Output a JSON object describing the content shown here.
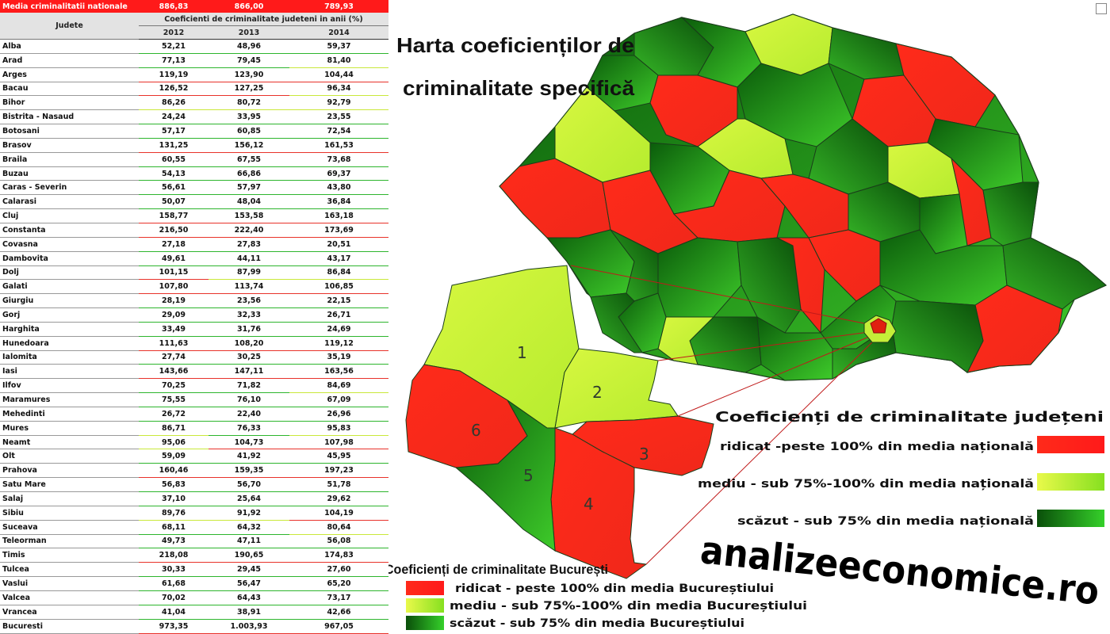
{
  "national": {
    "label": "Media criminalitatii nationale",
    "values": [
      "886,83",
      "866,00",
      "789,93"
    ]
  },
  "table": {
    "col_judete": "Judete",
    "col_header": "Coeficienti de criminalitate judeteni in anii (%)",
    "years": [
      "2012",
      "2013",
      "2014"
    ],
    "rows": [
      {
        "name": "Alba",
        "v": [
          "52,21",
          "48,96",
          "59,37"
        ],
        "c": [
          "g",
          "g",
          "g"
        ]
      },
      {
        "name": "Arad",
        "v": [
          "77,13",
          "79,45",
          "81,40"
        ],
        "c": [
          "g",
          "g",
          "y"
        ]
      },
      {
        "name": "Arges",
        "v": [
          "119,19",
          "123,90",
          "104,44"
        ],
        "c": [
          "r",
          "r",
          "r"
        ]
      },
      {
        "name": "Bacau",
        "v": [
          "126,52",
          "127,25",
          "96,34"
        ],
        "c": [
          "r",
          "r",
          "y"
        ]
      },
      {
        "name": "Bihor",
        "v": [
          "86,26",
          "80,72",
          "92,79"
        ],
        "c": [
          "y",
          "y",
          "y"
        ]
      },
      {
        "name": "Bistrita - Nasaud",
        "v": [
          "24,24",
          "33,95",
          "23,55"
        ],
        "c": [
          "g",
          "g",
          "g"
        ]
      },
      {
        "name": "Botosani",
        "v": [
          "57,17",
          "60,85",
          "72,54"
        ],
        "c": [
          "g",
          "g",
          "g"
        ]
      },
      {
        "name": "Brasov",
        "v": [
          "131,25",
          "156,12",
          "161,53"
        ],
        "c": [
          "r",
          "r",
          "r"
        ]
      },
      {
        "name": "Braila",
        "v": [
          "60,55",
          "67,55",
          "73,68"
        ],
        "c": [
          "g",
          "g",
          "g"
        ]
      },
      {
        "name": "Buzau",
        "v": [
          "54,13",
          "66,86",
          "69,37"
        ],
        "c": [
          "g",
          "g",
          "g"
        ]
      },
      {
        "name": "Caras - Severin",
        "v": [
          "56,61",
          "57,97",
          "43,80"
        ],
        "c": [
          "g",
          "g",
          "g"
        ]
      },
      {
        "name": "Calarasi",
        "v": [
          "50,07",
          "48,04",
          "36,84"
        ],
        "c": [
          "g",
          "g",
          "g"
        ]
      },
      {
        "name": "Cluj",
        "v": [
          "158,77",
          "153,58",
          "163,18"
        ],
        "c": [
          "r",
          "r",
          "r"
        ]
      },
      {
        "name": "Constanta",
        "v": [
          "216,50",
          "222,40",
          "173,69"
        ],
        "c": [
          "r",
          "r",
          "r"
        ]
      },
      {
        "name": "Covasna",
        "v": [
          "27,18",
          "27,83",
          "20,51"
        ],
        "c": [
          "g",
          "g",
          "g"
        ]
      },
      {
        "name": "Dambovita",
        "v": [
          "49,61",
          "44,11",
          "43,17"
        ],
        "c": [
          "g",
          "g",
          "g"
        ]
      },
      {
        "name": "Dolj",
        "v": [
          "101,15",
          "87,99",
          "86,84"
        ],
        "c": [
          "r",
          "y",
          "y"
        ]
      },
      {
        "name": "Galati",
        "v": [
          "107,80",
          "113,74",
          "106,85"
        ],
        "c": [
          "r",
          "r",
          "r"
        ]
      },
      {
        "name": "Giurgiu",
        "v": [
          "28,19",
          "23,56",
          "22,15"
        ],
        "c": [
          "g",
          "g",
          "g"
        ]
      },
      {
        "name": "Gorj",
        "v": [
          "29,09",
          "32,33",
          "26,71"
        ],
        "c": [
          "g",
          "g",
          "g"
        ]
      },
      {
        "name": "Harghita",
        "v": [
          "33,49",
          "31,76",
          "24,69"
        ],
        "c": [
          "g",
          "g",
          "g"
        ]
      },
      {
        "name": "Hunedoara",
        "v": [
          "111,63",
          "108,20",
          "119,12"
        ],
        "c": [
          "r",
          "r",
          "r"
        ]
      },
      {
        "name": "Ialomita",
        "v": [
          "27,74",
          "30,25",
          "35,19"
        ],
        "c": [
          "g",
          "g",
          "g"
        ]
      },
      {
        "name": "Iasi",
        "v": [
          "143,66",
          "147,11",
          "163,56"
        ],
        "c": [
          "r",
          "r",
          "r"
        ]
      },
      {
        "name": "Ilfov",
        "v": [
          "70,25",
          "71,82",
          "84,69"
        ],
        "c": [
          "g",
          "g",
          "y"
        ]
      },
      {
        "name": "Maramures",
        "v": [
          "75,55",
          "76,10",
          "67,09"
        ],
        "c": [
          "g",
          "g",
          "g"
        ]
      },
      {
        "name": "Mehedinti",
        "v": [
          "26,72",
          "22,40",
          "26,96"
        ],
        "c": [
          "g",
          "g",
          "g"
        ]
      },
      {
        "name": "Mures",
        "v": [
          "86,71",
          "76,33",
          "95,83"
        ],
        "c": [
          "y",
          "g",
          "y"
        ]
      },
      {
        "name": "Neamt",
        "v": [
          "95,06",
          "104,73",
          "107,98"
        ],
        "c": [
          "y",
          "r",
          "r"
        ]
      },
      {
        "name": "Olt",
        "v": [
          "59,09",
          "41,92",
          "45,95"
        ],
        "c": [
          "g",
          "g",
          "g"
        ]
      },
      {
        "name": "Prahova",
        "v": [
          "160,46",
          "159,35",
          "197,23"
        ],
        "c": [
          "r",
          "r",
          "r"
        ]
      },
      {
        "name": "Satu Mare",
        "v": [
          "56,83",
          "56,70",
          "51,78"
        ],
        "c": [
          "g",
          "g",
          "g"
        ]
      },
      {
        "name": "Salaj",
        "v": [
          "37,10",
          "25,64",
          "29,62"
        ],
        "c": [
          "g",
          "g",
          "g"
        ]
      },
      {
        "name": "Sibiu",
        "v": [
          "89,76",
          "91,92",
          "104,19"
        ],
        "c": [
          "y",
          "y",
          "r"
        ]
      },
      {
        "name": "Suceava",
        "v": [
          "68,11",
          "64,32",
          "80,64"
        ],
        "c": [
          "g",
          "g",
          "y"
        ]
      },
      {
        "name": "Teleorman",
        "v": [
          "49,73",
          "47,11",
          "56,08"
        ],
        "c": [
          "g",
          "g",
          "g"
        ]
      },
      {
        "name": "Timis",
        "v": [
          "218,08",
          "190,65",
          "174,83"
        ],
        "c": [
          "r",
          "r",
          "r"
        ]
      },
      {
        "name": "Tulcea",
        "v": [
          "30,33",
          "29,45",
          "27,60"
        ],
        "c": [
          "g",
          "g",
          "g"
        ]
      },
      {
        "name": "Vaslui",
        "v": [
          "61,68",
          "56,47",
          "65,20"
        ],
        "c": [
          "g",
          "g",
          "g"
        ]
      },
      {
        "name": "Valcea",
        "v": [
          "70,02",
          "64,43",
          "73,17"
        ],
        "c": [
          "g",
          "g",
          "g"
        ]
      },
      {
        "name": "Vrancea",
        "v": [
          "41,04",
          "38,91",
          "42,66"
        ],
        "c": [
          "g",
          "g",
          "g"
        ]
      },
      {
        "name": "Bucuresti",
        "v": [
          "973,35",
          "1.003,93",
          "967,05"
        ],
        "c": [
          "r",
          "r",
          "r"
        ]
      }
    ]
  },
  "map": {
    "title_line1": "Harta coeficienților de",
    "title_line2": "criminalitate specifică",
    "legend_title": "Coeficienți de criminalitate județeni",
    "legend": [
      {
        "label": "ridicat -peste 100% din media națională",
        "level": "ridicat"
      },
      {
        "label": "mediu - sub 75%-100% din media națională",
        "level": "mediu"
      },
      {
        "label": "scăzut - sub 75% din media națională",
        "level": "scazut"
      }
    ],
    "site": "analizeeconomice.ro",
    "buc_title": "Coeficienți de criminalitate București",
    "buc_legend": [
      {
        "label": "ridicat - peste 100% din media Bucureștiului",
        "level": "ridicat"
      },
      {
        "label": "mediu - sub 75%-100% din media Bucureștiului",
        "level": "mediu"
      },
      {
        "label": "scăzut - sub 75% din media Bucureștiului",
        "level": "scazut"
      }
    ],
    "sectors": [
      "1",
      "2",
      "3",
      "4",
      "5",
      "6"
    ]
  },
  "colors": {
    "red": "#ff2a1a",
    "yellow": "#ccf53a",
    "green": "#178a17",
    "darkgreen": "#0a5a0a"
  }
}
